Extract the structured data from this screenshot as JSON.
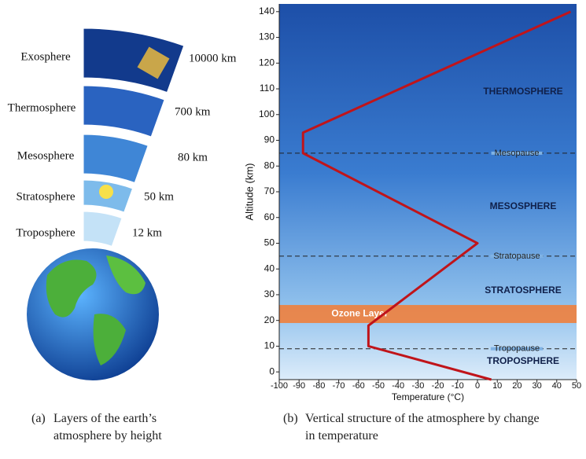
{
  "illustration": {
    "layers": [
      {
        "name": "Exosphere",
        "height": "10000 km"
      },
      {
        "name": "Thermosphere",
        "height": "700 km"
      },
      {
        "name": "Mesosphere",
        "height": "80 km"
      },
      {
        "name": "Stratosphere",
        "height": "50 km"
      },
      {
        "name": "Troposphere",
        "height": "12 km"
      }
    ]
  },
  "captions": [
    {
      "tag": "(a)",
      "text": "Layers of the earth’s atmosphere by height"
    },
    {
      "tag": "(b)",
      "text": "Vertical structure of the atmosphere by change in temperature"
    }
  ],
  "chart_data": {
    "type": "line",
    "xlabel": "Temperature (°C)",
    "ylabel": "Altitude (km)",
    "xlim": [
      -100,
      50
    ],
    "xticks": [
      -100,
      -90,
      -80,
      -70,
      -60,
      -50,
      -40,
      -30,
      -20,
      -10,
      0,
      10,
      20,
      30,
      40,
      50
    ],
    "ylim": [
      -3,
      143
    ],
    "yticks": [
      0,
      10,
      20,
      30,
      40,
      50,
      60,
      70,
      80,
      90,
      100,
      110,
      120,
      130,
      140
    ],
    "series": [
      {
        "color": "#c0141a",
        "x": [
          7,
          -55,
          -55,
          0,
          -88,
          -88,
          47
        ],
        "values": [
          -3,
          10,
          18,
          50,
          85,
          93,
          140
        ]
      }
    ],
    "reference_lines": [
      {
        "label": "Mesopause",
        "value": 85
      },
      {
        "label": "Stratopause",
        "value": 45
      },
      {
        "label": "Tropopause",
        "value": 9
      }
    ],
    "ozone_layer": {
      "label": "Ozone Layer",
      "range": [
        19,
        26
      ],
      "color": "#f0803c"
    },
    "region_labels": [
      "THERMOSPHERE",
      "MESOSPHERE",
      "STRATOSPHERE",
      "TROPOSPHERE"
    ]
  }
}
